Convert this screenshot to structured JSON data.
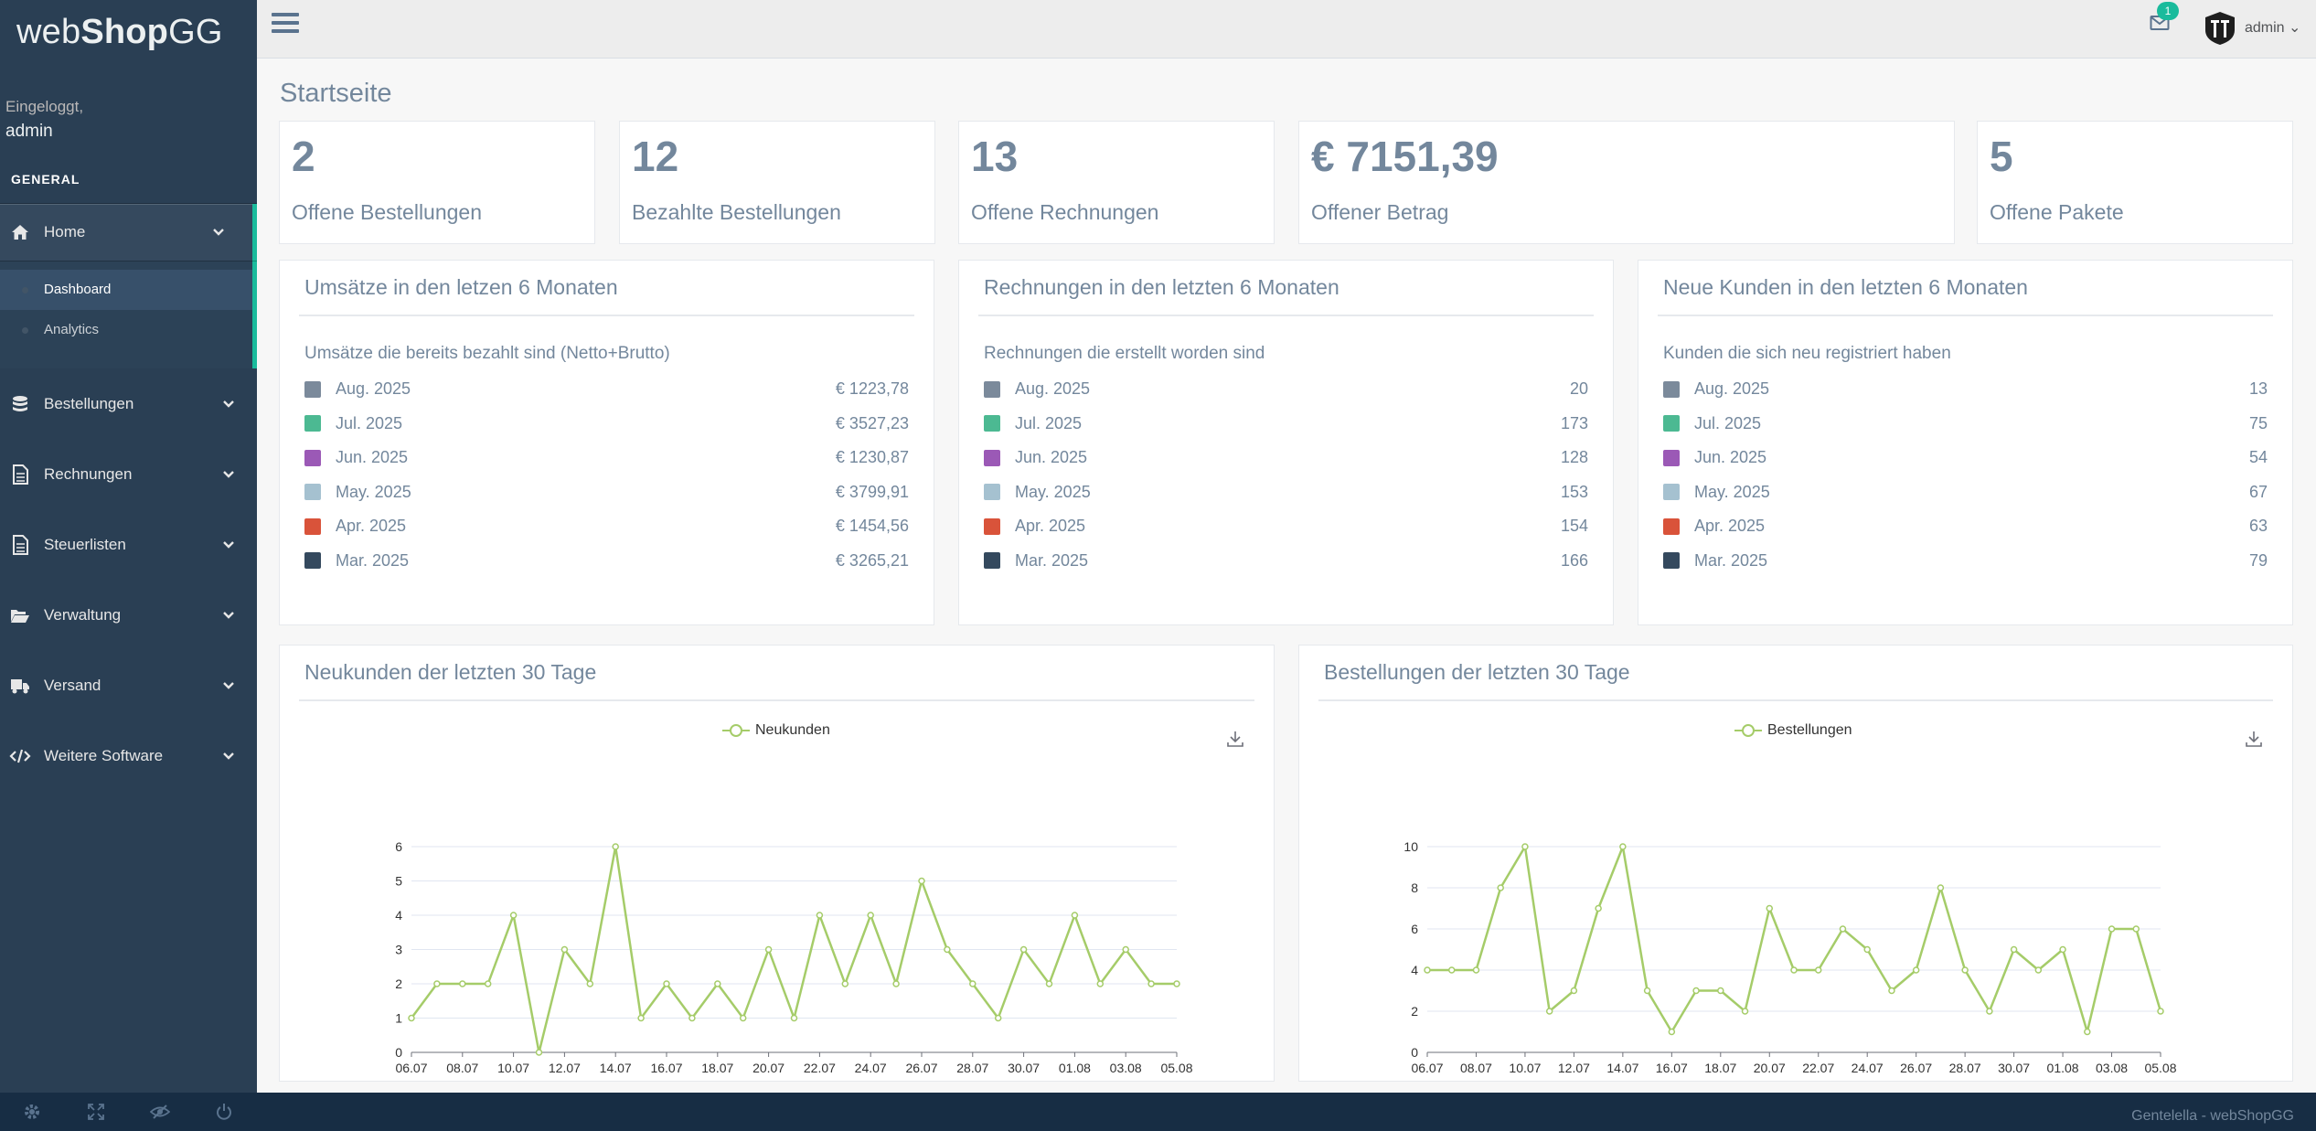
{
  "brand": {
    "part1": "web",
    "part2": "Shop",
    "part3": "GG"
  },
  "profile": {
    "label": "Eingeloggt,",
    "name": "admin"
  },
  "sidebar": {
    "section_title": "GENERAL",
    "home": {
      "label": "Home",
      "icon": "home-icon"
    },
    "sub_items": [
      {
        "label": "Dashboard"
      },
      {
        "label": "Analytics"
      }
    ],
    "items": [
      {
        "label": "Bestellungen",
        "icon": "database-icon"
      },
      {
        "label": "Rechnungen",
        "icon": "document-icon"
      },
      {
        "label": "Steuerlisten",
        "icon": "document-icon"
      },
      {
        "label": "Verwaltung",
        "icon": "folder-open-icon"
      },
      {
        "label": "Versand",
        "icon": "truck-icon"
      },
      {
        "label": "Weitere Software",
        "icon": "code-icon"
      }
    ]
  },
  "topbar": {
    "mail_badge": "1",
    "user": "admin"
  },
  "page_title": "Startseite",
  "tiles": [
    {
      "count": "2",
      "label": "Offene Bestellungen"
    },
    {
      "count": "12",
      "label": "Bezahlte Bestellungen"
    },
    {
      "count": "13",
      "label": "Offene Rechnungen"
    },
    {
      "count": "€ 7151,39",
      "label": "Offener Betrag"
    },
    {
      "count": "5",
      "label": "Offene Pakete"
    }
  ],
  "colors": {
    "aug": "#7b8a9b",
    "jul": "#4cb992",
    "jun": "#9b59b6",
    "may": "#a5c1d0",
    "apr": "#d9533a",
    "mar": "#34495e",
    "line": "#a5cc69",
    "accent": "#1abb9c",
    "sidebar": "#2a3f54"
  },
  "panels": [
    {
      "title": "Umsätze in den letzen 6 Monaten",
      "subtitle": "Umsätze die bereits bezahlt sind (Netto+Brutto)",
      "rows": [
        {
          "month": "Aug. 2025",
          "value": "€ 1223,78"
        },
        {
          "month": "Jul. 2025",
          "value": "€ 3527,23"
        },
        {
          "month": "Jun. 2025",
          "value": "€ 1230,87"
        },
        {
          "month": "May. 2025",
          "value": "€ 3799,91"
        },
        {
          "month": "Apr. 2025",
          "value": "€ 1454,56"
        },
        {
          "month": "Mar. 2025",
          "value": "€ 3265,21"
        }
      ]
    },
    {
      "title": "Rechnungen in den letzten 6 Monaten",
      "subtitle": "Rechnungen die erstellt worden sind",
      "rows": [
        {
          "month": "Aug. 2025",
          "value": "20"
        },
        {
          "month": "Jul. 2025",
          "value": "173"
        },
        {
          "month": "Jun. 2025",
          "value": "128"
        },
        {
          "month": "May. 2025",
          "value": "153"
        },
        {
          "month": "Apr. 2025",
          "value": "154"
        },
        {
          "month": "Mar. 2025",
          "value": "166"
        }
      ]
    },
    {
      "title": "Neue Kunden in den letzten 6 Monaten",
      "subtitle": "Kunden die sich neu registriert haben",
      "rows": [
        {
          "month": "Aug. 2025",
          "value": "13"
        },
        {
          "month": "Jul. 2025",
          "value": "75"
        },
        {
          "month": "Jun. 2025",
          "value": "54"
        },
        {
          "month": "May. 2025",
          "value": "67"
        },
        {
          "month": "Apr. 2025",
          "value": "63"
        },
        {
          "month": "Mar. 2025",
          "value": "79"
        }
      ]
    }
  ],
  "chart_data": [
    {
      "type": "line",
      "title": "Neukunden der letzten 30 Tage",
      "x": [
        "06.07",
        "07.07",
        "08.07",
        "09.07",
        "10.07",
        "11.07",
        "12.07",
        "13.07",
        "14.07",
        "15.07",
        "16.07",
        "17.07",
        "18.07",
        "19.07",
        "20.07",
        "21.07",
        "22.07",
        "23.07",
        "24.07",
        "25.07",
        "26.07",
        "27.07",
        "28.07",
        "29.07",
        "30.07",
        "31.07",
        "01.08",
        "02.08",
        "03.08",
        "04.08",
        "05.08"
      ],
      "xticks": [
        "06.07",
        "08.07",
        "10.07",
        "12.07",
        "14.07",
        "16.07",
        "18.07",
        "20.07",
        "22.07",
        "24.07",
        "26.07",
        "28.07",
        "30.07",
        "01.08",
        "03.08",
        "05.08"
      ],
      "series": [
        {
          "name": "Neukunden",
          "values": [
            1,
            2,
            2,
            2,
            4,
            0,
            3,
            2,
            6,
            1,
            2,
            1,
            2,
            1,
            3,
            1,
            4,
            2,
            4,
            2,
            5,
            3,
            2,
            1,
            3,
            2,
            4,
            2,
            3,
            2,
            2
          ]
        }
      ],
      "ylim": [
        0,
        6
      ],
      "yticks": [
        0,
        1,
        2,
        3,
        4,
        5,
        6
      ],
      "grid": true,
      "legend": "top-center"
    },
    {
      "type": "line",
      "title": "Bestellungen der letzten 30 Tage",
      "x": [
        "06.07",
        "07.07",
        "08.07",
        "09.07",
        "10.07",
        "11.07",
        "12.07",
        "13.07",
        "14.07",
        "15.07",
        "16.07",
        "17.07",
        "18.07",
        "19.07",
        "20.07",
        "21.07",
        "22.07",
        "23.07",
        "24.07",
        "25.07",
        "26.07",
        "27.07",
        "28.07",
        "29.07",
        "30.07",
        "31.07",
        "01.08",
        "02.08",
        "03.08",
        "04.08",
        "05.08"
      ],
      "xticks": [
        "06.07",
        "08.07",
        "10.07",
        "12.07",
        "14.07",
        "16.07",
        "18.07",
        "20.07",
        "22.07",
        "24.07",
        "26.07",
        "28.07",
        "30.07",
        "01.08",
        "03.08",
        "05.08"
      ],
      "series": [
        {
          "name": "Bestellungen",
          "values": [
            4,
            4,
            4,
            8,
            10,
            2,
            3,
            7,
            10,
            3,
            1,
            3,
            3,
            2,
            7,
            4,
            4,
            6,
            5,
            3,
            4,
            8,
            4,
            2,
            5,
            4,
            5,
            1,
            6,
            6,
            2
          ]
        }
      ],
      "ylim": [
        0,
        10
      ],
      "yticks": [
        0,
        2,
        4,
        6,
        8,
        10
      ],
      "grid": true,
      "legend": "top-center"
    }
  ],
  "footer": {
    "text": "Gentelella - webShopGG"
  }
}
